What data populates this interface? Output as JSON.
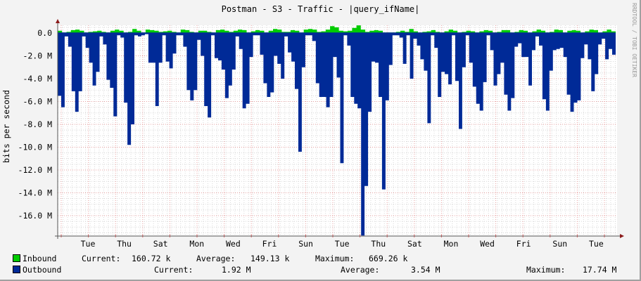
{
  "chart_data": {
    "type": "area",
    "title": "Postman - S3 - Traffic - |query_ifName|",
    "ylabel": "bits per second",
    "xlabel": "",
    "watermark": "RRDTOOL / TOBI OETIKER",
    "ylim": [
      -17.9,
      0.6
    ],
    "yticks": [
      {
        "value": 0,
        "label": "0.0"
      },
      {
        "value": -2,
        "label": "-2.0 M"
      },
      {
        "value": -4,
        "label": "-4.0 M"
      },
      {
        "value": -6,
        "label": "-6.0 M"
      },
      {
        "value": -8,
        "label": "-8.0 M"
      },
      {
        "value": -10,
        "label": "-10.0 M"
      },
      {
        "value": -12,
        "label": "-12.0 M"
      },
      {
        "value": -14,
        "label": "-14.0 M"
      },
      {
        "value": -16,
        "label": "-16.0 M"
      }
    ],
    "xticks": [
      "Tue",
      "Thu",
      "Sat",
      "Mon",
      "Wed",
      "Fri",
      "Sun",
      "Tue",
      "Thu",
      "Sat",
      "Mon",
      "Wed",
      "Fri",
      "Sun",
      "Tue"
    ],
    "grid": true,
    "legend_position": "bottom",
    "series": [
      {
        "name": "Inbound",
        "color": "#00cc00",
        "unit": "Mbps (plotted positive)",
        "values": [
          0.2,
          0.05,
          0.1,
          0.25,
          0.3,
          0.2,
          0.05,
          0.1,
          0.15,
          0.2,
          0.1,
          0.05,
          0.2,
          0.3,
          0.2,
          0.05,
          0.1,
          0.35,
          0.2,
          0.05,
          0.3,
          0.25,
          0.2,
          0.1,
          0.15,
          0.2,
          0.1,
          0.05,
          0.3,
          0.25,
          0.1,
          0.05,
          0.2,
          0.2,
          0.1,
          0.05,
          0.25,
          0.3,
          0.2,
          0.1,
          0.2,
          0.3,
          0.25,
          0.05,
          0.15,
          0.25,
          0.2,
          0.05,
          0.2,
          0.35,
          0.3,
          0.1,
          0.1,
          0.25,
          0.2,
          0.05,
          0.3,
          0.35,
          0.3,
          0.1,
          0.15,
          0.3,
          0.6,
          0.5,
          0.2,
          0.15,
          0.2,
          0.45,
          0.67,
          0.3,
          0.1,
          0.2,
          0.25,
          0.2,
          0.05,
          0.05,
          0.05,
          0.1,
          0.2,
          0.1,
          0.35,
          0.15,
          0.05,
          0.1,
          0.15,
          0.25,
          0.1,
          0.05,
          0.15,
          0.3,
          0.2,
          0.05,
          0.1,
          0.2,
          0.15,
          0.05,
          0.15,
          0.25,
          0.2,
          0.05,
          0.1,
          0.25,
          0.25,
          0.05,
          0.1,
          0.25,
          0.2,
          0.05,
          0.15,
          0.3,
          0.2,
          0.05,
          0.1,
          0.3,
          0.25,
          0.05,
          0.2,
          0.25,
          0.2,
          0.05,
          0.15,
          0.3,
          0.25,
          0.05,
          0.15,
          0.3,
          0.15
        ]
      },
      {
        "name": "Outbound",
        "color": "#002a97",
        "unit": "Mbps (plotted negative)",
        "values": [
          5.5,
          6.5,
          0.3,
          1.2,
          5.1,
          6.9,
          5.1,
          0.3,
          1.3,
          2.6,
          4.6,
          3.4,
          0.3,
          1.0,
          4.1,
          4.8,
          7.3,
          0.2,
          0.4,
          6.1,
          9.8,
          8.0,
          0.2,
          0.3,
          0.2,
          0.1,
          2.6,
          2.6,
          6.4,
          2.6,
          0.2,
          2.5,
          3.1,
          1.8,
          0.2,
          0.2,
          1.2,
          5.0,
          5.9,
          5.0,
          0.6,
          2.0,
          6.4,
          7.4,
          0.2,
          2.2,
          2.4,
          3.2,
          5.7,
          4.6,
          3.2,
          0.3,
          1.4,
          6.6,
          6.2,
          2.1,
          0.2,
          0.2,
          1.9,
          4.4,
          5.6,
          5.2,
          2.0,
          2.7,
          4.0,
          0.3,
          1.7,
          2.5,
          4.9,
          10.4,
          3.0,
          0.2,
          0.2,
          0.7,
          4.4,
          5.6,
          5.6,
          6.5,
          5.6,
          2.1,
          3.9,
          11.4,
          0.2,
          1.1,
          5.6,
          6.2,
          6.6,
          17.74,
          13.4,
          6.9,
          2.5,
          2.6,
          5.6,
          13.7,
          5.9,
          2.8,
          0.2,
          0.2,
          0.4,
          2.7,
          0.2,
          4.0,
          0.5,
          1.1,
          2.3,
          3.3,
          7.9,
          0.2,
          1.3,
          5.6,
          3.4,
          3.6,
          4.5,
          0.2,
          4.2,
          8.4,
          3.0,
          0.2,
          2.6,
          4.7,
          6.2,
          6.8,
          4.3,
          0.2,
          1.5,
          4.6,
          3.6,
          2.6,
          5.4,
          6.8,
          5.7,
          1.2,
          0.9,
          2.1,
          2.1,
          4.6,
          1.5,
          0.3,
          1.1,
          5.8,
          6.8,
          3.3,
          1.5,
          1.4,
          1.3,
          2.1,
          5.4,
          6.9,
          6.1,
          5.9,
          2.2,
          1.0,
          2.3,
          5.1,
          3.6,
          1.0,
          0.5,
          2.3,
          1.4,
          1.9
        ]
      }
    ]
  },
  "legend": {
    "inbound": {
      "label": "Inbound",
      "current_label": "Current:",
      "current": "160.72 k",
      "average_label": "Average:",
      "average": "149.13 k",
      "maximum_label": "Maximum:",
      "maximum": "669.26 k"
    },
    "outbound": {
      "label": "Outbound",
      "current_label": "Current:",
      "current": "1.92 M",
      "average_label": "Average:",
      "average": "3.54 M",
      "maximum_label": "Maximum:",
      "maximum": "17.74 M"
    }
  }
}
